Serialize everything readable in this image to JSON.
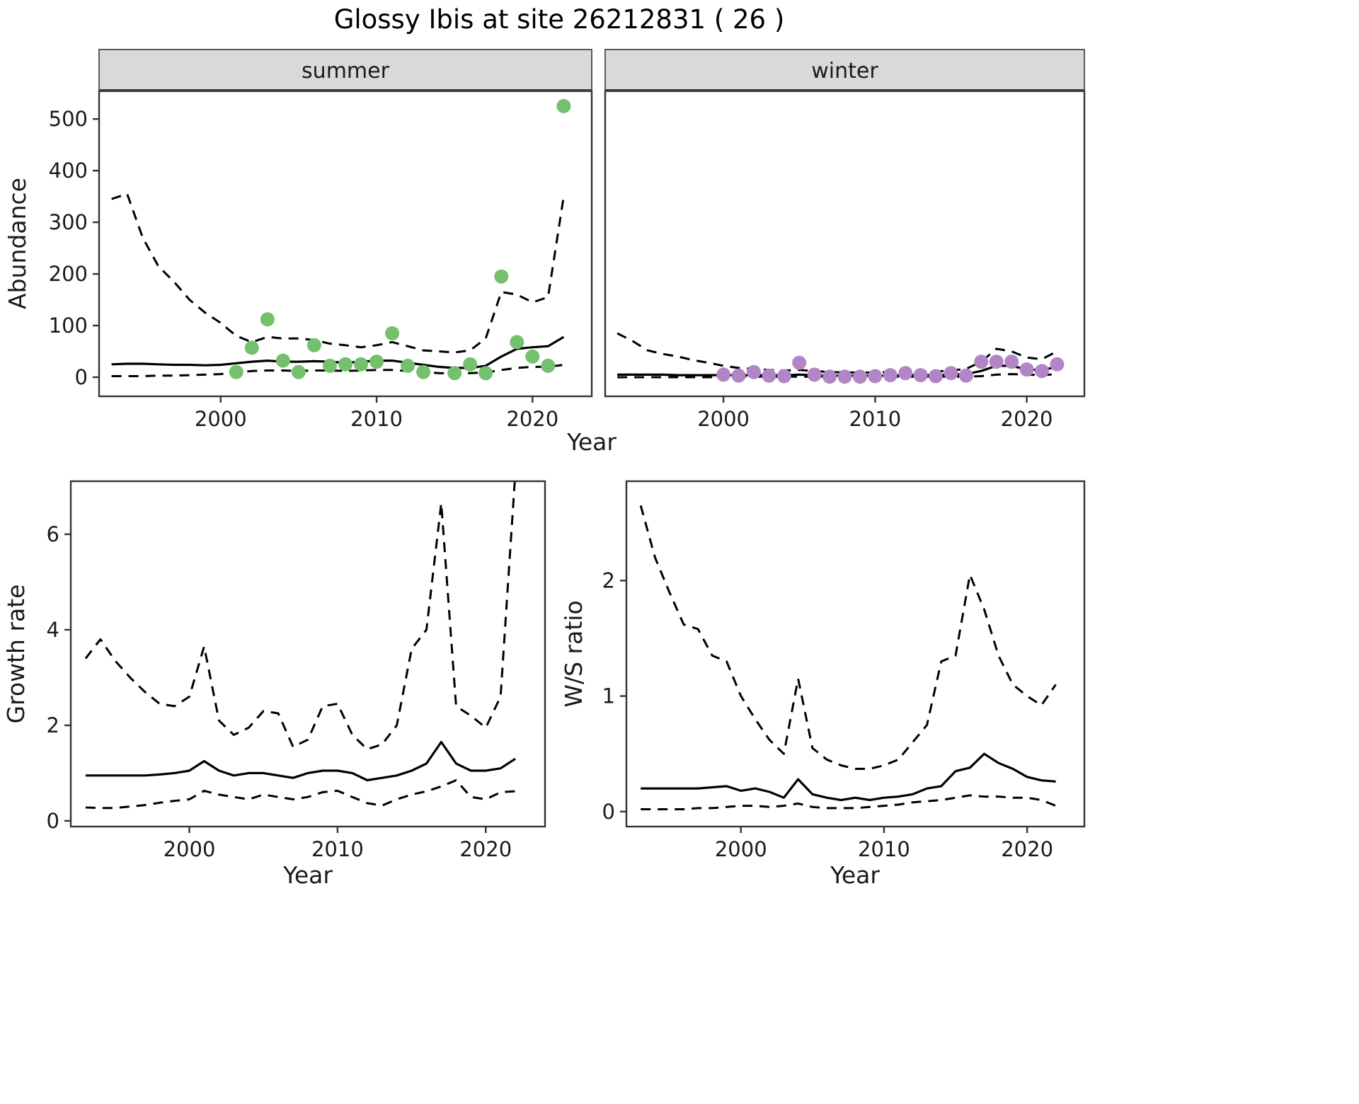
{
  "title": "Glossy Ibis at site 26212831 ( 26 )",
  "colors": {
    "line": "#000000",
    "strip_bg": "#d9d9d9",
    "strip_border": "#595959",
    "panel_border": "#333333",
    "text": "#1a1a1a",
    "tick": "#333333"
  },
  "chart_data": [
    {
      "id": "abundance",
      "type": "line",
      "xlabel": "Year",
      "ylabel": "Abundance",
      "grid": false,
      "legend": "none",
      "xlim": [
        1992.2,
        2023.8
      ],
      "ylim": [
        -37,
        555
      ],
      "xticks": [
        2000,
        2010,
        2020
      ],
      "yticks": [
        0,
        100,
        200,
        300,
        400,
        500
      ],
      "x": [
        1993,
        1994,
        1995,
        1996,
        1997,
        1998,
        1999,
        2000,
        2001,
        2002,
        2003,
        2004,
        2005,
        2006,
        2007,
        2008,
        2009,
        2010,
        2011,
        2012,
        2013,
        2014,
        2015,
        2016,
        2017,
        2018,
        2019,
        2020,
        2021,
        2022
      ],
      "facets": [
        {
          "label": "summer",
          "point_color": "#74c06c",
          "fit": [
            25,
            26,
            26,
            25,
            24,
            24,
            23,
            24,
            27,
            30,
            32,
            30,
            30,
            31,
            30,
            28,
            30,
            32,
            32,
            28,
            24,
            20,
            18,
            18,
            22,
            40,
            55,
            58,
            60,
            78
          ],
          "ci_upper": [
            345,
            355,
            270,
            215,
            185,
            150,
            125,
            105,
            80,
            68,
            78,
            75,
            75,
            72,
            65,
            62,
            58,
            62,
            68,
            60,
            52,
            50,
            48,
            52,
            75,
            165,
            160,
            145,
            155,
            350
          ],
          "ci_lower": [
            2,
            2,
            2,
            3,
            3,
            4,
            5,
            6,
            9,
            12,
            13,
            13,
            12,
            13,
            13,
            12,
            13,
            14,
            14,
            12,
            10,
            8,
            7,
            8,
            9,
            14,
            18,
            20,
            20,
            24
          ],
          "obs_x": [
            2001,
            2002,
            2003,
            2004,
            2005,
            2006,
            2007,
            2008,
            2009,
            2010,
            2011,
            2012,
            2013,
            2015,
            2016,
            2017,
            2018,
            2019,
            2020,
            2021,
            2022
          ],
          "obs_y": [
            10,
            57,
            112,
            32,
            10,
            62,
            22,
            25,
            25,
            30,
            85,
            22,
            10,
            8,
            25,
            8,
            195,
            68,
            40,
            22,
            525
          ]
        },
        {
          "label": "winter",
          "point_color": "#b285c6",
          "fit": [
            5,
            5,
            5,
            5,
            4,
            4,
            4,
            4,
            4,
            4,
            4,
            4,
            5,
            4,
            3,
            3,
            3,
            3,
            3,
            4,
            4,
            4,
            5,
            6,
            12,
            22,
            22,
            15,
            14,
            20
          ],
          "ci_upper": [
            85,
            70,
            52,
            45,
            40,
            33,
            28,
            22,
            18,
            16,
            14,
            13,
            14,
            12,
            10,
            9,
            9,
            9,
            10,
            11,
            11,
            11,
            13,
            16,
            30,
            55,
            50,
            38,
            35,
            50
          ],
          "ci_lower": [
            0,
            0,
            0,
            0,
            0,
            0,
            0,
            1,
            1,
            1,
            1,
            1,
            1,
            1,
            1,
            1,
            1,
            1,
            1,
            1,
            1,
            1,
            1,
            1,
            2,
            5,
            6,
            5,
            4,
            6
          ],
          "obs_x": [
            2000,
            2001,
            2002,
            2003,
            2004,
            2005,
            2006,
            2007,
            2008,
            2009,
            2010,
            2011,
            2012,
            2013,
            2014,
            2015,
            2016,
            2017,
            2018,
            2019,
            2020,
            2021,
            2022
          ],
          "obs_y": [
            5,
            3,
            10,
            3,
            2,
            28,
            5,
            1,
            1,
            1,
            2,
            4,
            8,
            4,
            2,
            8,
            3,
            30,
            30,
            30,
            15,
            12,
            25
          ]
        }
      ]
    },
    {
      "id": "growth_rate",
      "type": "line",
      "xlabel": "Year",
      "ylabel": "Growth rate",
      "grid": false,
      "legend": "none",
      "xlim": [
        1992,
        2024
      ],
      "ylim": [
        -0.12,
        7.11
      ],
      "xticks": [
        2000,
        2010,
        2020
      ],
      "yticks": [
        0,
        2,
        4,
        6
      ],
      "x": [
        1993,
        1994,
        1995,
        1996,
        1997,
        1998,
        1999,
        2000,
        2001,
        2002,
        2003,
        2004,
        2005,
        2006,
        2007,
        2008,
        2009,
        2010,
        2011,
        2012,
        2013,
        2014,
        2015,
        2016,
        2017,
        2018,
        2019,
        2020,
        2021,
        2022
      ],
      "fit": [
        0.95,
        0.95,
        0.95,
        0.95,
        0.95,
        0.97,
        1.0,
        1.05,
        1.25,
        1.05,
        0.95,
        1.0,
        1.0,
        0.95,
        0.9,
        1.0,
        1.05,
        1.05,
        1.0,
        0.85,
        0.9,
        0.95,
        1.05,
        1.2,
        1.65,
        1.2,
        1.05,
        1.05,
        1.1,
        1.3
      ],
      "ci_upper": [
        3.4,
        3.8,
        3.35,
        3.0,
        2.7,
        2.45,
        2.4,
        2.6,
        3.65,
        2.1,
        1.8,
        1.95,
        2.3,
        2.25,
        1.55,
        1.7,
        2.4,
        2.45,
        1.8,
        1.5,
        1.6,
        2.0,
        3.6,
        4.0,
        6.65,
        2.4,
        2.2,
        1.95,
        2.6,
        7.3
      ],
      "ci_lower": [
        0.28,
        0.27,
        0.27,
        0.3,
        0.33,
        0.38,
        0.42,
        0.45,
        0.63,
        0.55,
        0.5,
        0.45,
        0.55,
        0.5,
        0.45,
        0.5,
        0.6,
        0.63,
        0.5,
        0.37,
        0.32,
        0.45,
        0.55,
        0.62,
        0.72,
        0.85,
        0.5,
        0.45,
        0.6,
        0.62
      ]
    },
    {
      "id": "ws_ratio",
      "type": "line",
      "xlabel": "Year",
      "ylabel": "W/S ratio",
      "grid": false,
      "legend": "none",
      "xlim": [
        1992,
        2024
      ],
      "ylim": [
        -0.13,
        2.86
      ],
      "xticks": [
        2000,
        2010,
        2020
      ],
      "yticks": [
        0,
        1,
        2
      ],
      "x": [
        1993,
        1994,
        1995,
        1996,
        1997,
        1998,
        1999,
        2000,
        2001,
        2002,
        2003,
        2004,
        2005,
        2006,
        2007,
        2008,
        2009,
        2010,
        2011,
        2012,
        2013,
        2014,
        2015,
        2016,
        2017,
        2018,
        2019,
        2020,
        2021,
        2022
      ],
      "fit": [
        0.2,
        0.2,
        0.2,
        0.2,
        0.2,
        0.21,
        0.22,
        0.18,
        0.2,
        0.17,
        0.12,
        0.28,
        0.15,
        0.12,
        0.1,
        0.12,
        0.1,
        0.12,
        0.13,
        0.15,
        0.2,
        0.22,
        0.35,
        0.38,
        0.5,
        0.42,
        0.37,
        0.3,
        0.27,
        0.26
      ],
      "ci_upper": [
        2.65,
        2.2,
        1.9,
        1.62,
        1.58,
        1.35,
        1.3,
        1.0,
        0.8,
        0.62,
        0.5,
        1.15,
        0.55,
        0.45,
        0.4,
        0.37,
        0.37,
        0.4,
        0.45,
        0.6,
        0.75,
        1.3,
        1.35,
        2.05,
        1.75,
        1.35,
        1.1,
        1.0,
        0.92,
        1.1
      ],
      "ci_lower": [
        0.02,
        0.02,
        0.02,
        0.02,
        0.03,
        0.03,
        0.04,
        0.05,
        0.05,
        0.04,
        0.05,
        0.07,
        0.04,
        0.03,
        0.03,
        0.03,
        0.04,
        0.05,
        0.06,
        0.08,
        0.09,
        0.1,
        0.12,
        0.14,
        0.13,
        0.13,
        0.12,
        0.12,
        0.1,
        0.05
      ]
    }
  ]
}
